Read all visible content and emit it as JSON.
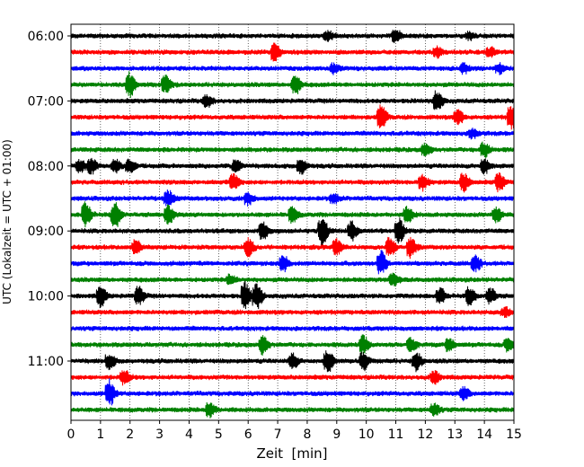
{
  "chart_data": {
    "type": "line",
    "xlabel": "Zeit  [min]",
    "ylabel": "UTC (Lokalzeit = UTC + 01:00)",
    "xlim": [
      0,
      15
    ],
    "x_ticks": [
      0,
      1,
      2,
      3,
      4,
      5,
      6,
      7,
      8,
      9,
      10,
      11,
      12,
      13,
      14,
      15
    ],
    "x_tick_labels": [
      "0",
      "1",
      "2",
      "3",
      "4",
      "5",
      "6",
      "7",
      "8",
      "9",
      "10",
      "11",
      "12",
      "13",
      "14",
      "15"
    ],
    "y_tick_labels": [
      "06:00",
      "07:00",
      "08:00",
      "09:00",
      "10:00",
      "11:00"
    ],
    "y_tick_times": [
      "06:00",
      "07:00",
      "08:00",
      "09:00",
      "10:00",
      "11:00"
    ],
    "trace_interval_minutes": 15,
    "grid": "vertical-dotted",
    "trace_colors": [
      "#000000",
      "#ff0000",
      "#0000ff",
      "#008000"
    ],
    "traces": [
      {
        "start": "06:00",
        "color": "#000000",
        "events": [
          {
            "t": 8.7,
            "amp": 0.3
          },
          {
            "t": 11.0,
            "amp": 0.4
          },
          {
            "t": 13.5,
            "amp": 0.2
          }
        ]
      },
      {
        "start": "06:15",
        "color": "#ff0000",
        "events": [
          {
            "t": 6.9,
            "amp": 0.6
          },
          {
            "t": 12.4,
            "amp": 0.3
          },
          {
            "t": 14.2,
            "amp": 0.3
          }
        ]
      },
      {
        "start": "06:30",
        "color": "#0000ff",
        "events": [
          {
            "t": 8.9,
            "amp": 0.3
          },
          {
            "t": 13.3,
            "amp": 0.3
          },
          {
            "t": 14.5,
            "amp": 0.3
          }
        ]
      },
      {
        "start": "06:45",
        "color": "#008000",
        "events": [
          {
            "t": 2.0,
            "amp": 0.8
          },
          {
            "t": 3.2,
            "amp": 0.6
          },
          {
            "t": 7.6,
            "amp": 0.6
          }
        ]
      },
      {
        "start": "07:00",
        "color": "#000000",
        "events": [
          {
            "t": 4.6,
            "amp": 0.4
          },
          {
            "t": 12.4,
            "amp": 0.7
          }
        ]
      },
      {
        "start": "07:15",
        "color": "#ff0000",
        "events": [
          {
            "t": 10.5,
            "amp": 0.8
          },
          {
            "t": 13.1,
            "amp": 0.5
          },
          {
            "t": 14.9,
            "amp": 0.8
          }
        ]
      },
      {
        "start": "07:30",
        "color": "#0000ff",
        "events": [
          {
            "t": 13.6,
            "amp": 0.3
          }
        ]
      },
      {
        "start": "07:45",
        "color": "#008000",
        "events": [
          {
            "t": 12.0,
            "amp": 0.4
          },
          {
            "t": 14.0,
            "amp": 0.5
          }
        ]
      },
      {
        "start": "08:00",
        "color": "#000000",
        "events": [
          {
            "t": 0.3,
            "amp": 0.4
          },
          {
            "t": 0.7,
            "amp": 0.5
          },
          {
            "t": 1.5,
            "amp": 0.4
          },
          {
            "t": 2.0,
            "amp": 0.5
          },
          {
            "t": 5.6,
            "amp": 0.4
          },
          {
            "t": 7.8,
            "amp": 0.5
          },
          {
            "t": 14.0,
            "amp": 0.5
          }
        ]
      },
      {
        "start": "08:15",
        "color": "#ff0000",
        "events": [
          {
            "t": 5.5,
            "amp": 0.5
          },
          {
            "t": 11.9,
            "amp": 0.5
          },
          {
            "t": 13.3,
            "amp": 0.6
          },
          {
            "t": 14.5,
            "amp": 0.6
          }
        ]
      },
      {
        "start": "08:30",
        "color": "#0000ff",
        "events": [
          {
            "t": 3.3,
            "amp": 0.5
          },
          {
            "t": 6.0,
            "amp": 0.4
          },
          {
            "t": 8.9,
            "amp": 0.3
          }
        ]
      },
      {
        "start": "08:45",
        "color": "#008000",
        "events": [
          {
            "t": 0.5,
            "amp": 0.8
          },
          {
            "t": 1.5,
            "amp": 0.9
          },
          {
            "t": 3.3,
            "amp": 0.6
          },
          {
            "t": 7.5,
            "amp": 0.5
          },
          {
            "t": 11.4,
            "amp": 0.5
          },
          {
            "t": 14.4,
            "amp": 0.5
          }
        ]
      },
      {
        "start": "09:00",
        "color": "#000000",
        "events": [
          {
            "t": 6.5,
            "amp": 0.6
          },
          {
            "t": 8.5,
            "amp": 1.0
          },
          {
            "t": 9.5,
            "amp": 0.6
          },
          {
            "t": 11.1,
            "amp": 0.8
          }
        ]
      },
      {
        "start": "09:15",
        "color": "#ff0000",
        "events": [
          {
            "t": 2.2,
            "amp": 0.5
          },
          {
            "t": 6.0,
            "amp": 0.6
          },
          {
            "t": 9.0,
            "amp": 0.5
          },
          {
            "t": 10.8,
            "amp": 0.6
          },
          {
            "t": 11.5,
            "amp": 0.7
          }
        ]
      },
      {
        "start": "09:30",
        "color": "#0000ff",
        "events": [
          {
            "t": 7.2,
            "amp": 0.5
          },
          {
            "t": 10.5,
            "amp": 0.8
          },
          {
            "t": 13.7,
            "amp": 0.5
          }
        ]
      },
      {
        "start": "09:45",
        "color": "#008000",
        "events": [
          {
            "t": 5.4,
            "amp": 0.3
          },
          {
            "t": 10.9,
            "amp": 0.4
          }
        ]
      },
      {
        "start": "10:00",
        "color": "#000000",
        "events": [
          {
            "t": 1.0,
            "amp": 0.7
          },
          {
            "t": 2.3,
            "amp": 0.6
          },
          {
            "t": 5.9,
            "amp": 0.9
          },
          {
            "t": 6.3,
            "amp": 0.8
          },
          {
            "t": 12.5,
            "amp": 0.5
          },
          {
            "t": 13.5,
            "amp": 0.6
          },
          {
            "t": 14.2,
            "amp": 0.5
          }
        ]
      },
      {
        "start": "10:15",
        "color": "#ff0000",
        "events": [
          {
            "t": 14.7,
            "amp": 0.3
          }
        ]
      },
      {
        "start": "10:30",
        "color": "#0000ff",
        "events": []
      },
      {
        "start": "10:45",
        "color": "#008000",
        "events": [
          {
            "t": 6.5,
            "amp": 0.6
          },
          {
            "t": 9.9,
            "amp": 0.6
          },
          {
            "t": 11.5,
            "amp": 0.5
          },
          {
            "t": 12.8,
            "amp": 0.4
          },
          {
            "t": 14.8,
            "amp": 0.4
          }
        ]
      },
      {
        "start": "11:00",
        "color": "#000000",
        "events": [
          {
            "t": 1.3,
            "amp": 0.5
          },
          {
            "t": 7.5,
            "amp": 0.5
          },
          {
            "t": 8.7,
            "amp": 0.7
          },
          {
            "t": 9.9,
            "amp": 0.6
          },
          {
            "t": 11.7,
            "amp": 0.6
          }
        ]
      },
      {
        "start": "11:15",
        "color": "#ff0000",
        "events": [
          {
            "t": 1.8,
            "amp": 0.5
          },
          {
            "t": 12.3,
            "amp": 0.4
          }
        ]
      },
      {
        "start": "11:30",
        "color": "#0000ff",
        "events": [
          {
            "t": 1.3,
            "amp": 0.9
          },
          {
            "t": 13.3,
            "amp": 0.4
          }
        ]
      },
      {
        "start": "11:45",
        "color": "#008000",
        "events": [
          {
            "t": 4.7,
            "amp": 0.5
          },
          {
            "t": 12.3,
            "amp": 0.4
          }
        ]
      }
    ]
  }
}
